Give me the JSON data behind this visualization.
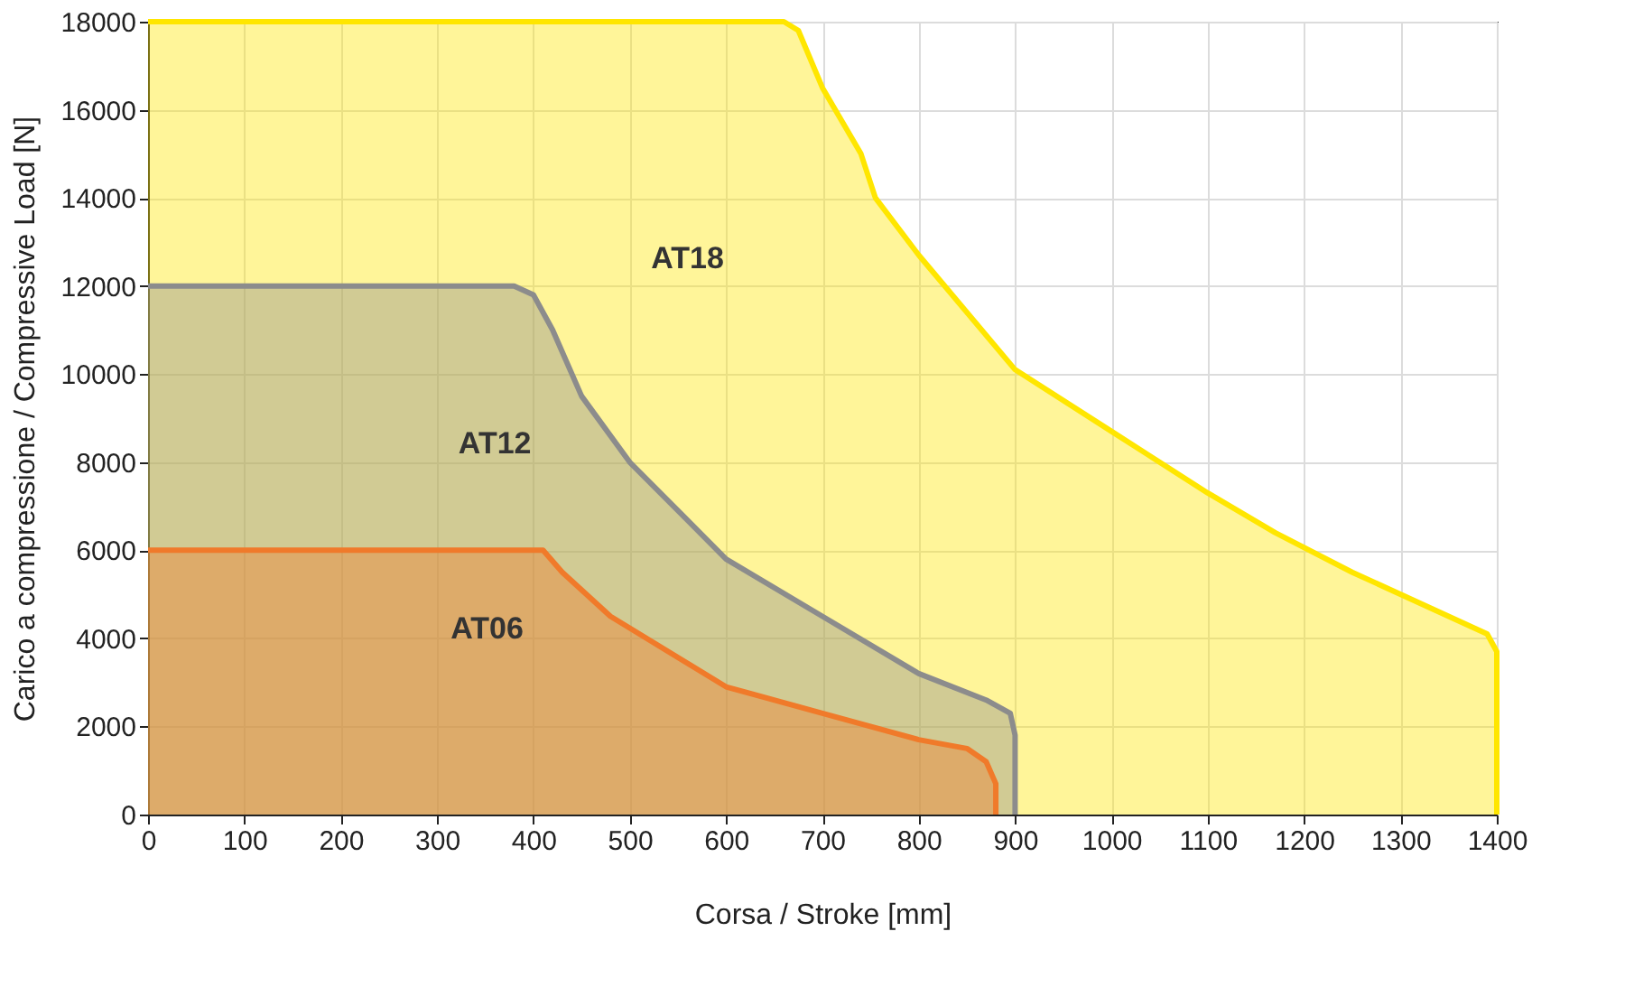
{
  "chart_data": {
    "type": "area",
    "xlabel": "Corsa / Stroke [mm]",
    "ylabel": "Carico a compressione / Compressive Load  [N]",
    "xlim": [
      0,
      1400
    ],
    "xticks": [
      0,
      100,
      200,
      300,
      400,
      500,
      600,
      700,
      800,
      900,
      1000,
      1100,
      1200,
      1300,
      1400
    ],
    "ylim": [
      0,
      18000
    ],
    "yticks": [
      0,
      2000,
      4000,
      6000,
      8000,
      10000,
      12000,
      14000,
      16000,
      18000
    ],
    "grid": true,
    "legend": false,
    "series": [
      {
        "name": "AT18",
        "color": "#ffe600",
        "x": [
          0,
          660,
          675,
          700,
          740,
          755,
          800,
          900,
          1000,
          1100,
          1170,
          1250,
          1390,
          1400,
          1400
        ],
        "values": [
          18000,
          18000,
          17800,
          16500,
          15000,
          14000,
          12700,
          10100,
          8700,
          7300,
          6400,
          5500,
          4100,
          3700,
          0
        ]
      },
      {
        "name": "AT12",
        "color": "#8c8c8c",
        "x": [
          0,
          380,
          400,
          420,
          450,
          500,
          550,
          600,
          700,
          800,
          870,
          895,
          900,
          900
        ],
        "values": [
          12000,
          12000,
          11800,
          11000,
          9500,
          8000,
          6900,
          5800,
          4500,
          3200,
          2600,
          2300,
          1800,
          0
        ]
      },
      {
        "name": "AT06",
        "color": "#f07a2a",
        "x": [
          0,
          410,
          430,
          480,
          600,
          700,
          800,
          850,
          870,
          880,
          880
        ],
        "values": [
          6000,
          6000,
          5500,
          4500,
          2900,
          2300,
          1700,
          1500,
          1200,
          700,
          0
        ]
      }
    ]
  }
}
